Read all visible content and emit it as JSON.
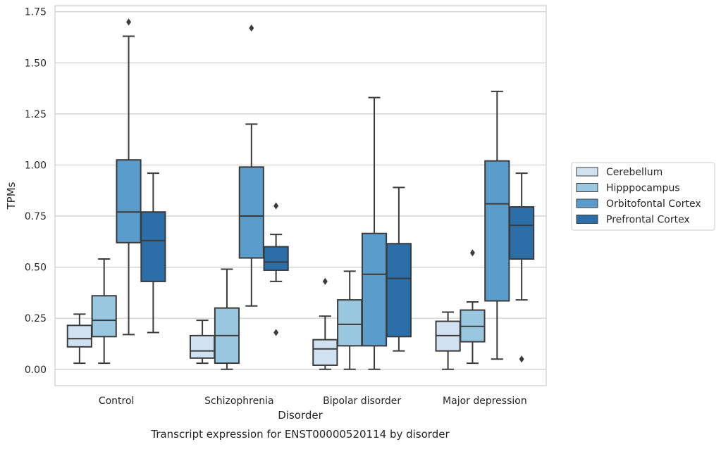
{
  "chart_data": {
    "type": "box",
    "title": "",
    "caption": "Transcript expression for ENST00000520114 by disorder",
    "xlabel": "Disorder",
    "ylabel": "TPMs",
    "ylim": [
      -0.08,
      1.78
    ],
    "yticks": [
      0.0,
      0.25,
      0.5,
      0.75,
      1.0,
      1.25,
      1.5,
      1.75
    ],
    "ytick_labels": [
      "0.00",
      "0.25",
      "0.50",
      "0.75",
      "1.00",
      "1.25",
      "1.50",
      "1.75"
    ],
    "grid": "horizontal",
    "legend_position": "right",
    "categories": [
      "Control",
      "Schizophrenia",
      "Bipolar disorder",
      "Major depression"
    ],
    "series": [
      {
        "name": "Cerebellum",
        "color": "#d0e2f2",
        "boxes": [
          {
            "whislo": 0.03,
            "q1": 0.11,
            "med": 0.15,
            "q3": 0.215,
            "whishi": 0.27,
            "fliers": []
          },
          {
            "whislo": 0.03,
            "q1": 0.055,
            "med": 0.09,
            "q3": 0.165,
            "whishi": 0.24,
            "fliers": []
          },
          {
            "whislo": 0.0,
            "q1": 0.02,
            "med": 0.1,
            "q3": 0.145,
            "whishi": 0.26,
            "fliers": [
              0.43
            ]
          },
          {
            "whislo": 0.0,
            "q1": 0.09,
            "med": 0.165,
            "q3": 0.235,
            "whishi": 0.28,
            "fliers": []
          }
        ]
      },
      {
        "name": "Hipppocampus",
        "color": "#9ac7e0",
        "boxes": [
          {
            "whislo": 0.03,
            "q1": 0.16,
            "med": 0.24,
            "q3": 0.36,
            "whishi": 0.54,
            "fliers": []
          },
          {
            "whislo": 0.0,
            "q1": 0.03,
            "med": 0.165,
            "q3": 0.3,
            "whishi": 0.49,
            "fliers": []
          },
          {
            "whislo": 0.0,
            "q1": 0.115,
            "med": 0.22,
            "q3": 0.34,
            "whishi": 0.48,
            "fliers": []
          },
          {
            "whislo": 0.03,
            "q1": 0.135,
            "med": 0.21,
            "q3": 0.29,
            "whishi": 0.33,
            "fliers": [
              0.57
            ]
          }
        ]
      },
      {
        "name": "Orbitofontal Cortex",
        "color": "#5a9dcc",
        "boxes": [
          {
            "whislo": 0.17,
            "q1": 0.62,
            "med": 0.77,
            "q3": 1.025,
            "whishi": 1.63,
            "fliers": [
              1.7
            ]
          },
          {
            "whislo": 0.31,
            "q1": 0.545,
            "med": 0.75,
            "q3": 0.99,
            "whishi": 1.2,
            "fliers": [
              1.67
            ]
          },
          {
            "whislo": 0.0,
            "q1": 0.115,
            "med": 0.465,
            "q3": 0.665,
            "whishi": 1.33,
            "fliers": []
          },
          {
            "whislo": 0.05,
            "q1": 0.335,
            "med": 0.81,
            "q3": 1.02,
            "whishi": 1.36,
            "fliers": []
          }
        ]
      },
      {
        "name": "Prefrontal Cortex",
        "color": "#2c6ea8",
        "boxes": [
          {
            "whislo": 0.18,
            "q1": 0.43,
            "med": 0.63,
            "q3": 0.77,
            "whishi": 0.96,
            "fliers": []
          },
          {
            "whislo": 0.43,
            "q1": 0.485,
            "med": 0.525,
            "q3": 0.6,
            "whishi": 0.66,
            "fliers": [
              0.8,
              0.18
            ]
          },
          {
            "whislo": 0.09,
            "q1": 0.16,
            "med": 0.445,
            "q3": 0.615,
            "whishi": 0.89,
            "fliers": []
          },
          {
            "whislo": 0.34,
            "q1": 0.54,
            "med": 0.705,
            "q3": 0.795,
            "whishi": 0.96,
            "fliers": [
              0.05
            ]
          }
        ]
      }
    ]
  }
}
